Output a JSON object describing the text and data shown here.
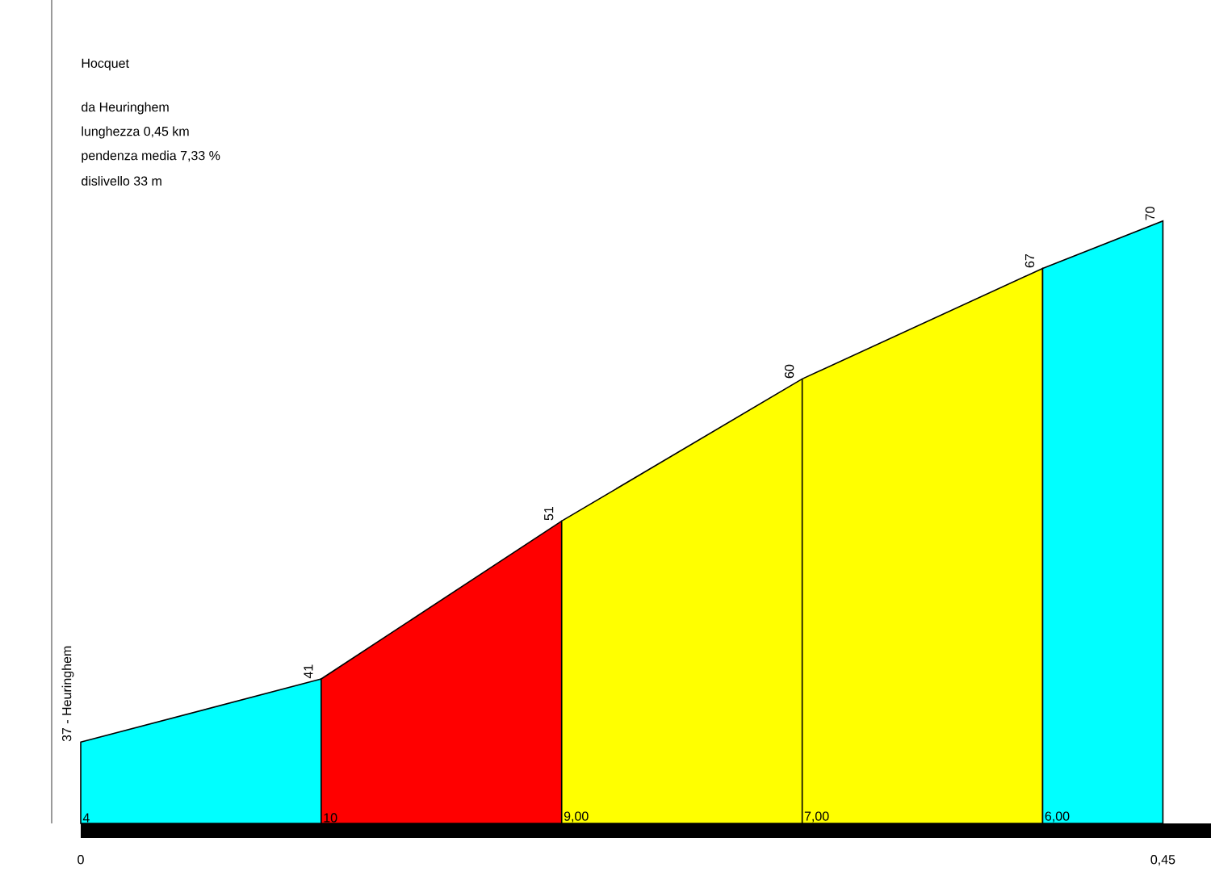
{
  "chart_data": {
    "type": "area",
    "title": "Hocquet",
    "subtitle": "da Heuringhem",
    "annotations": [
      "lunghezza 0,45 km",
      "pendenza media 7,33 %",
      "dislivello 33 m",
      {
        "text": "4",
        "x": 0,
        "y": 31.8
      },
      {
        "text": "10",
        "x": 0.1,
        "y": 31.8
      },
      {
        "text": "9,00",
        "x": 0.2,
        "y": 31.8
      },
      {
        "text": "7,00",
        "x": 0.3,
        "y": 31.8
      },
      {
        "text": "6,00",
        "x": 0.4,
        "y": 31.8
      }
    ],
    "series": [
      {
        "x": [
          0,
          0.1
        ],
        "values": [
          37,
          41
        ],
        "color": "#00ffff",
        "value_labels": [
          "37 - Heuringhem",
          "41"
        ]
      },
      {
        "x": [
          0.1,
          0.2
        ],
        "values": [
          41,
          51
        ],
        "color": "#ff0000",
        "value_labels": [
          null,
          "51"
        ]
      },
      {
        "x": [
          0.2,
          0.3,
          0.4
        ],
        "values": [
          51,
          60,
          67
        ],
        "color": "#ffff00",
        "value_labels": [
          null,
          "60",
          "67"
        ]
      },
      {
        "x": [
          0.4,
          0.45
        ],
        "values": [
          67,
          70
        ],
        "color": "#00ffff",
        "value_labels": [
          null,
          "70"
        ]
      }
    ],
    "xlim": [
      0,
      0.47
    ],
    "xticks": [
      0,
      {
        "value": 0.45,
        "label": "0,45"
      }
    ],
    "tick_labels": "x"
  }
}
